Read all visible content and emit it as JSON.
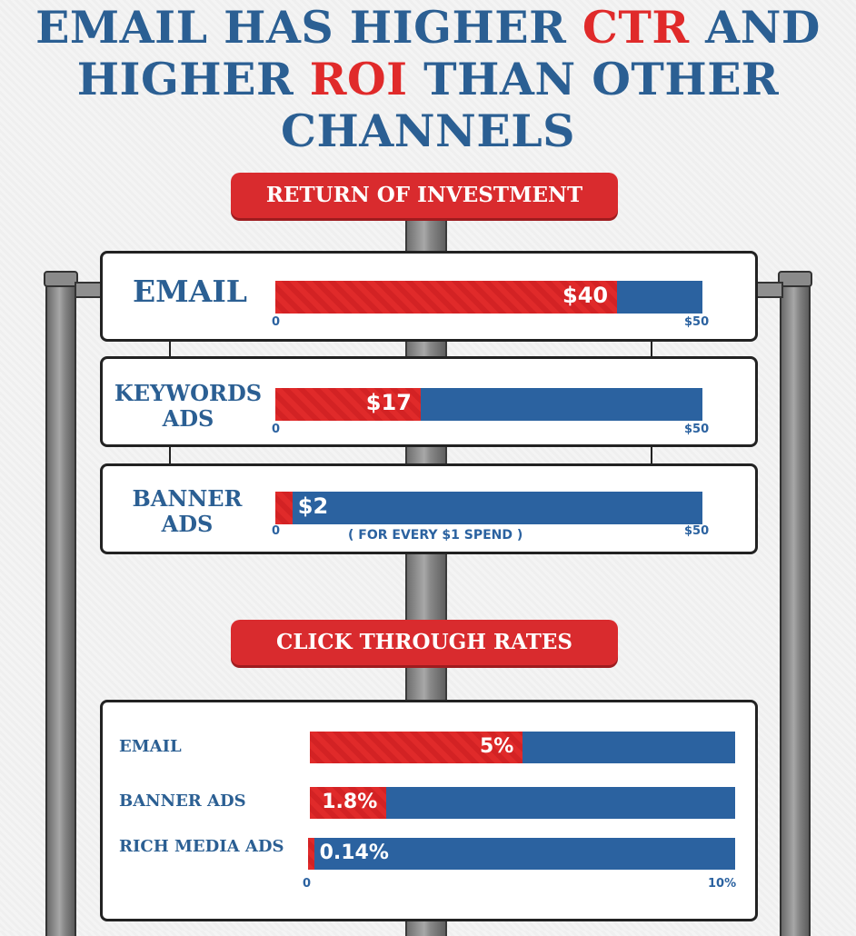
{
  "title": {
    "line1_a": "EMAIL HAS HIGHER ",
    "line1_hl": "CTR",
    "line1_b": " AND",
    "line2_a": "HIGHER ",
    "line2_hl": "ROI",
    "line2_b": " THAN OTHER",
    "line3": "CHANNELS"
  },
  "colors": {
    "red": "#e02a2a",
    "blue": "#2b62a0",
    "title_blue": "#2b5f93"
  },
  "chart_data": [
    {
      "type": "bar",
      "title": "RETURN OF INVESTMENT",
      "categories": [
        "EMAIL",
        "KEYWORDS ADS",
        "BANNER ADS"
      ],
      "values": [
        40,
        17,
        2
      ],
      "value_labels": [
        "$40",
        "$17",
        "$2"
      ],
      "xlim": [
        0,
        50
      ],
      "tick_min_label": "0",
      "tick_max_label": "$50",
      "note": "( FOR EVERY $1 SPEND )"
    },
    {
      "type": "bar",
      "title": "CLICK THROUGH RATES",
      "categories": [
        "EMAIL",
        "BANNER ADS",
        "RICH MEDIA ADS"
      ],
      "values": [
        5,
        1.8,
        0.14
      ],
      "value_labels": [
        "5%",
        "1.8%",
        "0.14%"
      ],
      "xlim": [
        0,
        10
      ],
      "tick_min_label": "0",
      "tick_max_label": "10%"
    }
  ]
}
